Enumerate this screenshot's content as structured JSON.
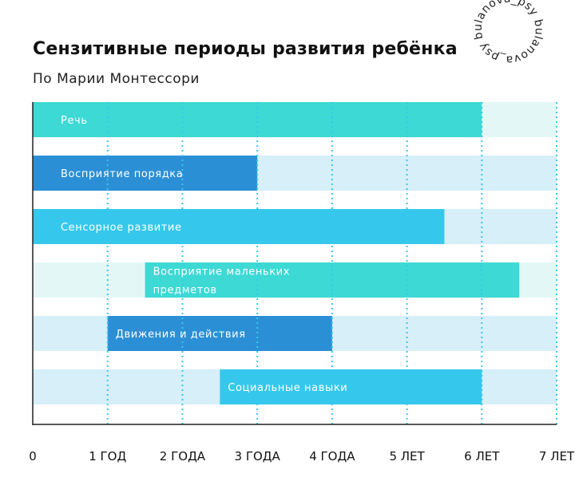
{
  "header": {
    "title": "Сензитивные периоды развития ребёнка",
    "subtitle": "По Марии Монтессори"
  },
  "stamp": {
    "text": "bulanova_psy bulanova_psy "
  },
  "colors": {
    "teal": "#3dd9d4",
    "teal_bg": "#e3f8f6",
    "blue": "#2b8fd6",
    "blue_bg": "#d6eff9",
    "sky": "#36c8ec",
    "grid": "#36c8ec",
    "axis": "#222222"
  },
  "chart_data": {
    "type": "bar",
    "orientation": "horizontal-range",
    "title": "Сензитивные периоды развития ребёнка",
    "subtitle": "По Марии Монтессори",
    "xlabel": "",
    "ylabel": "",
    "xlim": [
      0,
      7
    ],
    "grid": true,
    "tick_labels": [
      "0",
      "1 ГОД",
      "2 ГОДА",
      "3 ГОДА",
      "4 ГОДА",
      "5 ЛЕТ",
      "6 ЛЕТ",
      "7 ЛЕТ"
    ],
    "bars": [
      {
        "label": [
          "Речь"
        ],
        "start": 0,
        "end": 6,
        "color": "teal",
        "track": "teal_bg"
      },
      {
        "label": [
          "Восприятие порядка"
        ],
        "start": 0,
        "end": 3,
        "color": "blue",
        "track": "blue_bg"
      },
      {
        "label": [
          "Сенсорное развитие"
        ],
        "start": 0,
        "end": 5.5,
        "color": "sky",
        "track": "blue_bg"
      },
      {
        "label": [
          "Восприятие маленьких",
          "предметов"
        ],
        "start": 1.5,
        "end": 6.5,
        "color": "teal",
        "track": "teal_bg"
      },
      {
        "label": [
          "Движения и действия"
        ],
        "start": 1,
        "end": 4,
        "color": "blue",
        "track": "blue_bg"
      },
      {
        "label": [
          "Социальные навыки"
        ],
        "start": 2.5,
        "end": 6,
        "color": "sky",
        "track": "blue_bg"
      }
    ]
  }
}
